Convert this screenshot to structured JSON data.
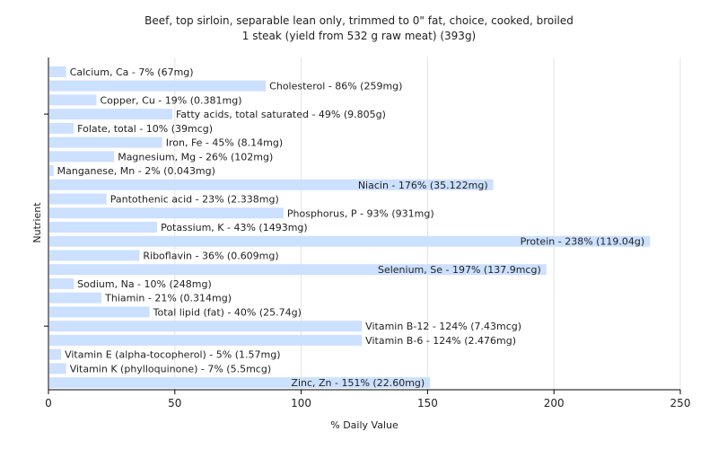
{
  "chart_data": {
    "type": "bar",
    "orientation": "horizontal",
    "title": "Beef, top sirloin, separable lean only, trimmed to 0\" fat, choice, cooked, broiled",
    "subtitle": "1 steak (yield from 532 g raw meat) (393g)",
    "xlabel": "% Daily Value",
    "ylabel": "Nutrient",
    "xlim": [
      0,
      250
    ],
    "xticks": [
      "0",
      "50",
      "100",
      "150",
      "200",
      "250"
    ],
    "grid": true,
    "bar_color": "#cce0ff",
    "categories": [
      "Calcium, Ca",
      "Cholesterol",
      "Copper, Cu",
      "Fatty acids, total saturated",
      "Folate, total",
      "Iron, Fe",
      "Magnesium, Mg",
      "Manganese, Mn",
      "Niacin",
      "Pantothenic acid",
      "Phosphorus, P",
      "Potassium, K",
      "Protein",
      "Riboflavin",
      "Selenium, Se",
      "Sodium, Na",
      "Thiamin",
      "Total lipid (fat)",
      "Vitamin B-12",
      "Vitamin B-6",
      "Vitamin E (alpha-tocopherol)",
      "Vitamin K (phylloquinone)",
      "Zinc, Zn"
    ],
    "values": [
      7,
      86,
      19,
      49,
      10,
      45,
      26,
      2,
      176,
      23,
      93,
      43,
      238,
      36,
      197,
      10,
      21,
      40,
      124,
      124,
      5,
      7,
      151
    ],
    "labels": [
      "Calcium, Ca - 7% (67mg)",
      "Cholesterol - 86% (259mg)",
      "Copper, Cu - 19% (0.381mg)",
      "Fatty acids, total saturated - 49% (9.805g)",
      "Folate, total - 10% (39mcg)",
      "Iron, Fe - 45% (8.14mg)",
      "Magnesium, Mg - 26% (102mg)",
      "Manganese, Mn - 2% (0.043mg)",
      "Niacin - 176% (35.122mg)",
      "Pantothenic acid - 23% (2.338mg)",
      "Phosphorus, P - 93% (931mg)",
      "Potassium, K - 43% (1493mg)",
      "Protein - 238% (119.04g)",
      "Riboflavin - 36% (0.609mg)",
      "Selenium, Se - 197% (137.9mcg)",
      "Sodium, Na - 10% (248mg)",
      "Thiamin - 21% (0.314mg)",
      "Total lipid (fat) - 40% (25.74g)",
      "Vitamin B-12 - 124% (7.43mcg)",
      "Vitamin B-6 - 124% (2.476mg)",
      "Vitamin E (alpha-tocopherol) - 5% (1.57mg)",
      "Vitamin K (phylloquinone) - 7% (5.5mcg)",
      "Zinc, Zn - 151% (22.60mg)"
    ]
  }
}
